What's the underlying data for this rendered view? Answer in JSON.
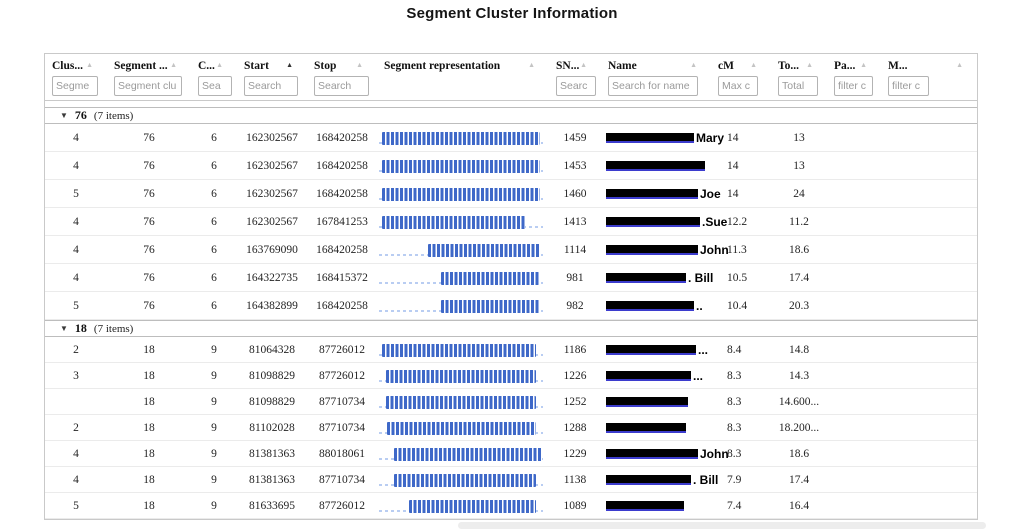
{
  "title": "Segment Cluster Information",
  "columns": [
    {
      "label": "Clus...",
      "filter": "Segme",
      "sort": "inactive"
    },
    {
      "label": "Segment ...",
      "filter": "Segment clu",
      "sort": "inactive"
    },
    {
      "label": "C...",
      "filter": "Sea",
      "sort": "inactive"
    },
    {
      "label": "Start",
      "filter": "Search",
      "sort": "active"
    },
    {
      "label": "Stop",
      "filter": "Search",
      "sort": "inactive"
    },
    {
      "label": "Segment representation",
      "filter": null,
      "sort": "inactive"
    },
    {
      "label": "SN...",
      "filter": "Searc",
      "sort": "inactive"
    },
    {
      "label": "Name",
      "filter": "Search for name",
      "sort": "inactive"
    },
    {
      "label": "cM",
      "filter": "Max c",
      "sort": "inactive"
    },
    {
      "label": "To...",
      "filter": "Total",
      "sort": "inactive"
    },
    {
      "label": "Pa...",
      "filter": "filter c",
      "sort": "inactive"
    },
    {
      "label": "M...",
      "filter": "filter c",
      "sort": "inactive"
    }
  ],
  "colors": {
    "bar_blue": "#3e68c8",
    "dash_blue": "#b9cdf2",
    "redact_black": "#000000",
    "link_underline": "#3c3ccd",
    "group_border": "#bdbdbd",
    "row_border": "#ebebeb",
    "table_border": "#c9c9c9"
  },
  "groups": [
    {
      "key": "76",
      "count": "(7 items)",
      "rows": [
        {
          "cluster": "4",
          "segment": "76",
          "chr": "6",
          "start": "162302567",
          "stop": "168420258",
          "bar": [
            2,
            98
          ],
          "snps": "1459",
          "name_w": 88,
          "name": "Mary",
          "cm": "14",
          "total": "13"
        },
        {
          "cluster": "4",
          "segment": "76",
          "chr": "6",
          "start": "162302567",
          "stop": "168420258",
          "bar": [
            2,
            98
          ],
          "snps": "1453",
          "name_w": 99,
          "name": "",
          "cm": "14",
          "total": "13"
        },
        {
          "cluster": "5",
          "segment": "76",
          "chr": "6",
          "start": "162302567",
          "stop": "168420258",
          "bar": [
            2,
            98
          ],
          "snps": "1460",
          "name_w": 92,
          "name": "Joe",
          "cm": "14",
          "total": "24"
        },
        {
          "cluster": "4",
          "segment": "76",
          "chr": "6",
          "start": "162302567",
          "stop": "167841253",
          "bar": [
            2,
            89
          ],
          "snps": "1413",
          "name_w": 94,
          "name": ".Sue",
          "cm": "12.2",
          "total": "11.2"
        },
        {
          "cluster": "4",
          "segment": "76",
          "chr": "6",
          "start": "163769090",
          "stop": "168420258",
          "bar": [
            30,
            98
          ],
          "snps": "1114",
          "name_w": 92,
          "name": "John",
          "cm": "11.3",
          "total": "18.6"
        },
        {
          "cluster": "4",
          "segment": "76",
          "chr": "6",
          "start": "164322735",
          "stop": "168415372",
          "bar": [
            38,
            97.5
          ],
          "snps": "981",
          "name_w": 80,
          "name": ". Bill",
          "cm": "10.5",
          "total": "17.4"
        },
        {
          "cluster": "5",
          "segment": "76",
          "chr": "6",
          "start": "164382899",
          "stop": "168420258",
          "bar": [
            38,
            98
          ],
          "snps": "982",
          "name_w": 88,
          "name": "..",
          "cm": "10.4",
          "total": "20.3"
        }
      ]
    },
    {
      "key": "18",
      "count": "(7 items)",
      "rows": [
        {
          "cluster": "2",
          "segment": "18",
          "chr": "9",
          "start": "81064328",
          "stop": "87726012",
          "bar": [
            2,
            96
          ],
          "snps": "1186",
          "name_w": 90,
          "name": "...",
          "cm": "8.4",
          "total": "14.8"
        },
        {
          "cluster": "3",
          "segment": "18",
          "chr": "9",
          "start": "81098829",
          "stop": "87726012",
          "bar": [
            4,
            96
          ],
          "snps": "1226",
          "name_w": 85,
          "name": "...",
          "cm": "8.3",
          "total": "14.3"
        },
        {
          "cluster": "",
          "segment": "18",
          "chr": "9",
          "start": "81098829",
          "stop": "87710734",
          "bar": [
            4,
            95.5
          ],
          "snps": "1252",
          "name_w": 82,
          "name": "",
          "cm": "8.3",
          "total": "14.600..."
        },
        {
          "cluster": "2",
          "segment": "18",
          "chr": "9",
          "start": "81102028",
          "stop": "87710734",
          "bar": [
            5,
            95.5
          ],
          "snps": "1288",
          "name_w": 80,
          "name": "",
          "cm": "8.3",
          "total": "18.200..."
        },
        {
          "cluster": "4",
          "segment": "18",
          "chr": "9",
          "start": "81381363",
          "stop": "88018061",
          "bar": [
            9,
            99.5
          ],
          "snps": "1229",
          "name_w": 92,
          "name": "John",
          "cm": "8.3",
          "total": "18.6"
        },
        {
          "cluster": "4",
          "segment": "18",
          "chr": "9",
          "start": "81381363",
          "stop": "87710734",
          "bar": [
            9,
            95.5
          ],
          "snps": "1138",
          "name_w": 85,
          "name": ". Bill",
          "cm": "7.9",
          "total": "17.4"
        },
        {
          "cluster": "5",
          "segment": "18",
          "chr": "9",
          "start": "81633695",
          "stop": "87726012",
          "bar": [
            18,
            96
          ],
          "snps": "1089",
          "name_w": 78,
          "name": "",
          "cm": "7.4",
          "total": "16.4"
        }
      ]
    }
  ]
}
